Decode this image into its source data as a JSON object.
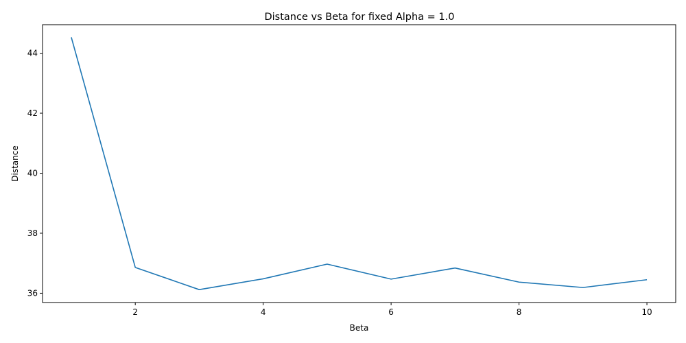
{
  "chart_data": {
    "type": "line",
    "title": "Distance vs Beta for fixed Alpha = 1.0",
    "xlabel": "Beta",
    "ylabel": "Distance",
    "xlim": [
      0.55,
      10.45
    ],
    "ylim": [
      35.69,
      44.95
    ],
    "xticks": [
      2,
      4,
      6,
      8,
      10
    ],
    "yticks": [
      36,
      38,
      40,
      42,
      44
    ],
    "grid": false,
    "legend": "none",
    "series": [
      {
        "color": "#1f77b4",
        "x": [
          1,
          2,
          3,
          4,
          5,
          6,
          7,
          8,
          9,
          10
        ],
        "y": [
          44.53,
          36.86,
          36.12,
          36.48,
          36.97,
          36.47,
          36.84,
          36.37,
          36.19,
          36.45
        ]
      }
    ]
  }
}
